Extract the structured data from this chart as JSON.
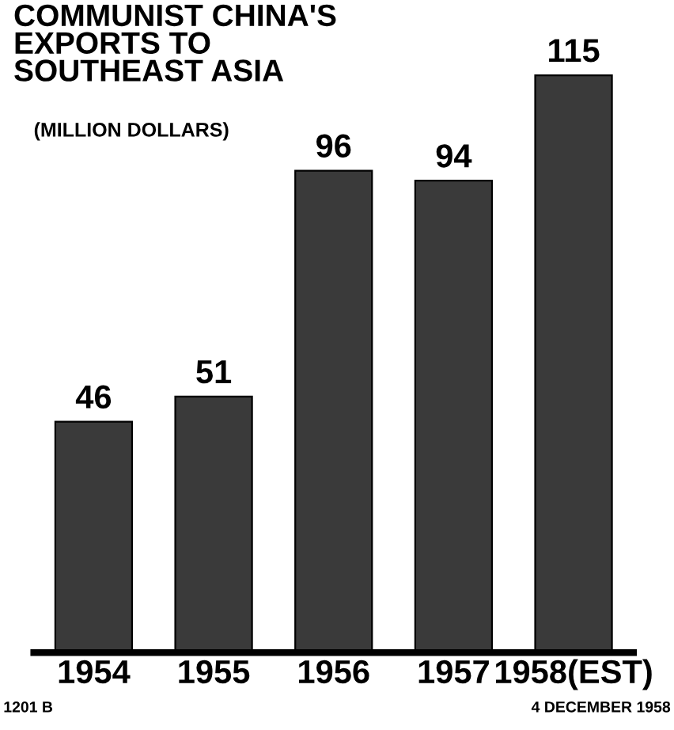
{
  "chart_data": {
    "type": "bar",
    "title": "COMMUNIST CHINA'S\nEXPORTS TO\nSOUTHEAST ASIA",
    "subtitle": "(MILLION DOLLARS)",
    "categories": [
      "1954",
      "1955",
      "1956",
      "1957",
      "1958(EST)"
    ],
    "values": [
      46,
      51,
      96,
      94,
      115
    ],
    "color": "#3a3a3a",
    "data_labels": true,
    "grid": false,
    "legend": false,
    "annotations": [
      "1201 B",
      "4 DECEMBER 1958"
    ]
  }
}
